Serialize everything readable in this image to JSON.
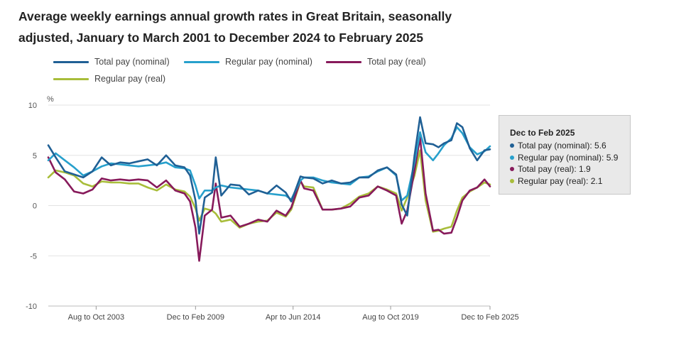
{
  "title": "Average weekly earnings annual growth rates in Great Britain, seasonally adjusted, January to March 2001 to December 2024 to February 2025",
  "legend": [
    {
      "label": "Total pay (nominal)",
      "color": "#206095"
    },
    {
      "label": "Regular pay (nominal)",
      "color": "#27a0cc"
    },
    {
      "label": "Total pay (real)",
      "color": "#871a5b"
    },
    {
      "label": "Regular pay (real)",
      "color": "#a8bd3a"
    }
  ],
  "tooltip": {
    "title": "Dec to Feb 2025",
    "rows": [
      {
        "label": "Total pay (nominal): 5.6",
        "color": "#206095"
      },
      {
        "label": "Regular pay (nominal): 5.9",
        "color": "#27a0cc"
      },
      {
        "label": "Total pay (real): 1.9",
        "color": "#871a5b"
      },
      {
        "label": "Regular pay (real): 2.1",
        "color": "#a8bd3a"
      }
    ]
  },
  "chart_data": {
    "type": "line",
    "title": "Average weekly earnings annual growth rates in Great Britain, seasonally adjusted, January to March 2001 to December 2024 to February 2025",
    "ylabel": "%",
    "xlabel": "",
    "ylim": [
      -10,
      10
    ],
    "yticks": [
      "10",
      "5",
      "0",
      "-5",
      "-10"
    ],
    "x_ticks": [
      "Aug to Oct 2003",
      "Dec to Feb 2009",
      "Apr to Jun 2014",
      "Aug to Oct 2019",
      "Dec to Feb 2025"
    ],
    "grid": true,
    "legend_position": "top",
    "x": [
      2001.1,
      2001.5,
      2002.0,
      2002.5,
      2003.0,
      2003.5,
      2004.0,
      2004.5,
      2005.0,
      2005.5,
      2006.0,
      2006.5,
      2007.0,
      2007.5,
      2008.0,
      2008.5,
      2008.8,
      2009.1,
      2009.3,
      2009.6,
      2010.0,
      2010.2,
      2010.5,
      2011.0,
      2011.5,
      2012.0,
      2012.5,
      2013.0,
      2013.5,
      2014.0,
      2014.3,
      2014.8,
      2015.0,
      2015.5,
      2016.0,
      2016.5,
      2017.0,
      2017.5,
      2018.0,
      2018.5,
      2019.0,
      2019.5,
      2020.0,
      2020.3,
      2020.6,
      2021.0,
      2021.3,
      2021.6,
      2022.0,
      2022.3,
      2022.6,
      2023.0,
      2023.3,
      2023.6,
      2024.0,
      2024.4,
      2024.8,
      2025.1
    ],
    "series": [
      {
        "name": "Total pay (nominal)",
        "values": [
          6.0,
          4.8,
          3.4,
          3.1,
          2.8,
          3.4,
          4.8,
          4.0,
          4.3,
          4.2,
          4.4,
          4.6,
          4.0,
          5.0,
          4.0,
          3.8,
          3.0,
          0.5,
          -2.8,
          0.8,
          1.3,
          4.8,
          1.0,
          2.1,
          2.0,
          1.1,
          1.5,
          1.2,
          2.0,
          1.3,
          0.4,
          2.9,
          2.8,
          2.7,
          2.2,
          2.5,
          2.2,
          2.3,
          2.8,
          2.8,
          3.5,
          3.8,
          3.1,
          0.1,
          -1.0,
          5.0,
          8.8,
          6.2,
          6.1,
          5.8,
          6.2,
          6.5,
          8.2,
          7.8,
          5.7,
          4.5,
          5.5,
          5.6
        ]
      },
      {
        "name": "Regular pay (nominal)",
        "values": [
          4.5,
          5.2,
          4.5,
          3.8,
          3.0,
          3.4,
          3.9,
          4.2,
          4.1,
          4.0,
          3.9,
          4.0,
          4.1,
          4.3,
          3.8,
          3.7,
          3.5,
          2.0,
          0.7,
          1.5,
          1.5,
          1.8,
          2.0,
          1.8,
          1.7,
          1.6,
          1.5,
          1.2,
          1.1,
          1.0,
          0.6,
          2.5,
          2.8,
          2.8,
          2.5,
          2.3,
          2.2,
          2.1,
          2.8,
          2.9,
          3.4,
          3.8,
          3.0,
          0.5,
          1.0,
          4.3,
          7.3,
          5.3,
          4.5,
          5.2,
          6.0,
          6.7,
          7.8,
          7.2,
          5.8,
          5.1,
          5.4,
          5.9
        ]
      },
      {
        "name": "Total pay (real)",
        "values": [
          4.8,
          3.3,
          2.6,
          1.4,
          1.2,
          1.6,
          2.7,
          2.5,
          2.6,
          2.5,
          2.6,
          2.5,
          1.8,
          2.5,
          1.5,
          1.2,
          0.4,
          -2.2,
          -5.5,
          -1.0,
          -0.4,
          2.2,
          -1.2,
          -1.0,
          -2.1,
          -1.8,
          -1.4,
          -1.6,
          -0.5,
          -1.0,
          -0.2,
          2.5,
          1.7,
          1.5,
          -0.4,
          -0.4,
          -0.3,
          -0.1,
          0.8,
          1.0,
          1.9,
          1.5,
          1.0,
          -1.8,
          -0.5,
          3.5,
          6.8,
          1.2,
          -2.5,
          -2.4,
          -2.8,
          -2.7,
          -1.2,
          0.5,
          1.5,
          1.8,
          2.6,
          1.9
        ]
      },
      {
        "name": "Regular pay (real)",
        "values": [
          2.8,
          3.5,
          3.3,
          3.0,
          2.2,
          1.9,
          2.4,
          2.3,
          2.3,
          2.2,
          2.2,
          1.8,
          1.5,
          2.1,
          1.6,
          1.4,
          0.9,
          -0.3,
          -1.5,
          -0.3,
          -0.5,
          -0.8,
          -1.6,
          -1.4,
          -2.2,
          -1.8,
          -1.6,
          -1.5,
          -0.7,
          -1.1,
          -0.4,
          2.4,
          1.9,
          1.8,
          -0.4,
          -0.4,
          -0.3,
          0.2,
          0.9,
          1.2,
          1.9,
          1.6,
          1.2,
          -0.5,
          0.8,
          3.0,
          5.5,
          0.5,
          -2.6,
          -2.5,
          -2.3,
          -2.1,
          -0.5,
          0.8,
          1.4,
          1.8,
          2.3,
          2.1
        ]
      }
    ]
  }
}
